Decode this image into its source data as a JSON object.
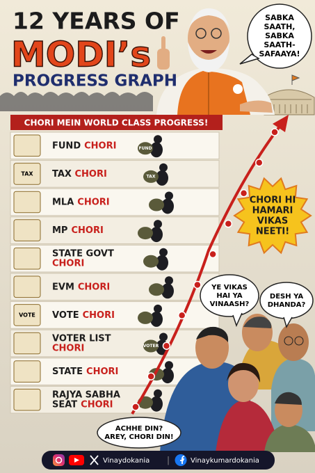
{
  "header": {
    "title_line1": "12 YEARS OF",
    "title_line2": "MODI’s",
    "title_line3": "PROGRESS GRAPH"
  },
  "speech_top": [
    "SABKA",
    "SAATH,",
    "SABKA",
    "SAATH-",
    "SAFAAYA!"
  ],
  "banner": "CHORI MEIN WORLD CLASS PROGRESS!",
  "rows": [
    {
      "lines": [
        {
          "text": "FUND",
          "chori": "CHORI"
        }
      ],
      "icon_text": null,
      "prop_text": "FUND"
    },
    {
      "lines": [
        {
          "text": "TAX",
          "chori": "CHORI"
        }
      ],
      "icon_text": "TAX",
      "prop_text": "TAX"
    },
    {
      "lines": [
        {
          "text": "MLA",
          "chori": "CHORI"
        }
      ],
      "icon_text": null,
      "prop_text": null
    },
    {
      "lines": [
        {
          "text": "MP",
          "chori": "CHORI"
        }
      ],
      "icon_text": null,
      "prop_text": null
    },
    {
      "lines": [
        {
          "text": "STATE GOVT"
        },
        {
          "chori": "CHORI"
        }
      ],
      "icon_text": null,
      "prop_text": null
    },
    {
      "lines": [
        {
          "text": "EVM",
          "chori": "CHORI"
        }
      ],
      "icon_text": null,
      "prop_text": null
    },
    {
      "lines": [
        {
          "text": "VOTE",
          "chori": "CHORI"
        }
      ],
      "icon_text": "VOTE",
      "prop_text": null
    },
    {
      "lines": [
        {
          "text": "VOTER LIST"
        },
        {
          "chori": "CHORI"
        }
      ],
      "icon_text": null,
      "prop_text": "VOTER"
    },
    {
      "lines": [
        {
          "text": "STATE",
          "chori": "CHORI"
        }
      ],
      "icon_text": null,
      "prop_text": null
    },
    {
      "lines": [
        {
          "text": "RAJYA SABHA"
        },
        {
          "text": "SEAT",
          "chori": "CHORI"
        }
      ],
      "icon_text": null,
      "prop_text": null
    }
  ],
  "starburst": [
    "CHORI HI",
    "HAMARI",
    "VIKAS",
    "NEETI!"
  ],
  "bubble_vikas": [
    "YE VIKAS",
    "HAI YA",
    "VINAASH?"
  ],
  "bubble_desh": [
    "DESH YA",
    "DHANDA?"
  ],
  "bubble_bottom": [
    "ACHHE DIN?",
    "AREY, CHORI DIN!"
  ],
  "footer": {
    "handle1": "Vinaydokania",
    "separator": "|",
    "handle2": "Vinaykumardokania"
  }
}
